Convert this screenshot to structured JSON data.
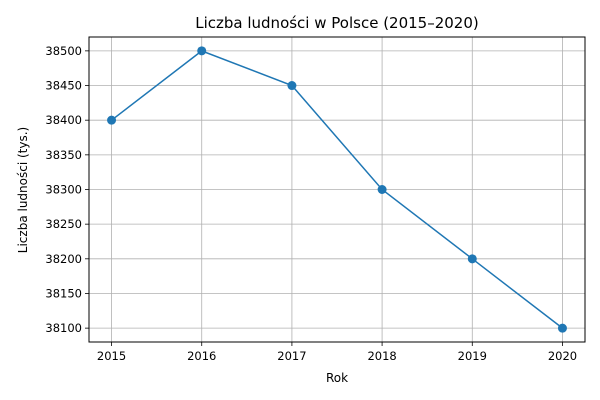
{
  "chart_data": {
    "type": "line",
    "title": "Liczba ludności w Polsce (2015–2020)",
    "xlabel": "Rok",
    "ylabel": "Liczba ludności (tys.)",
    "x": [
      2015,
      2016,
      2017,
      2018,
      2019,
      2020
    ],
    "series": [
      {
        "values": [
          38400,
          38500,
          38450,
          38300,
          38200,
          38100
        ],
        "color": "#1f77b4",
        "marker": "circle"
      }
    ],
    "xticks": [
      "2015",
      "2016",
      "2017",
      "2018",
      "2019",
      "2020"
    ],
    "yticks": [
      "38100",
      "38150",
      "38200",
      "38250",
      "38300",
      "38350",
      "38400",
      "38450",
      "38500"
    ],
    "xlim": [
      2014.75,
      2020.25
    ],
    "ylim": [
      38080,
      38520
    ],
    "grid": true,
    "legend": "none"
  }
}
